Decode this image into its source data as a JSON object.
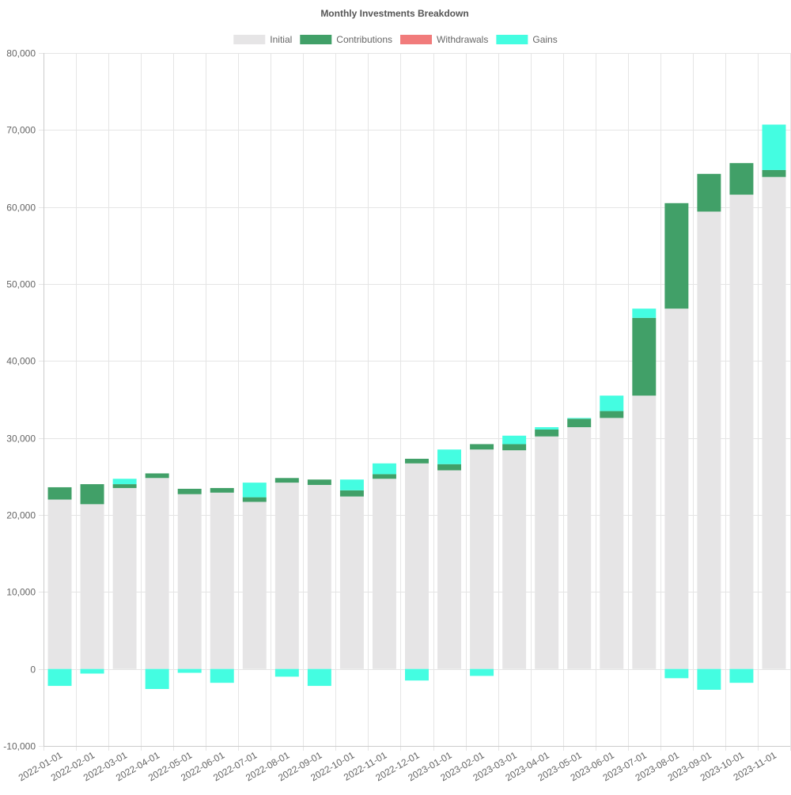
{
  "chart_data": {
    "type": "bar",
    "stacked": true,
    "title": "Monthly Investments Breakdown",
    "xlabel": "",
    "ylabel": "",
    "ylim": [
      -10000,
      80000
    ],
    "yticks": [
      -10000,
      0,
      10000,
      20000,
      30000,
      40000,
      50000,
      60000,
      70000,
      80000
    ],
    "ytick_labels": [
      "-10,000",
      "0",
      "10,000",
      "20,000",
      "30,000",
      "40,000",
      "50,000",
      "60,000",
      "70,000",
      "80,000"
    ],
    "grid": true,
    "legend_position": "top",
    "categories": [
      "2022-01-01",
      "2022-02-01",
      "2022-03-01",
      "2022-04-01",
      "2022-05-01",
      "2022-06-01",
      "2022-07-01",
      "2022-08-01",
      "2022-09-01",
      "2022-10-01",
      "2022-11-01",
      "2022-12-01",
      "2023-01-01",
      "2023-02-01",
      "2023-03-01",
      "2023-04-01",
      "2023-05-01",
      "2023-06-01",
      "2023-07-01",
      "2023-08-01",
      "2023-09-01",
      "2023-10-01",
      "2023-11-01"
    ],
    "series": [
      {
        "name": "Initial",
        "color": "#e6e5e6",
        "values": [
          22000,
          21400,
          23500,
          24800,
          22700,
          22900,
          21700,
          24200,
          23900,
          22400,
          24700,
          26700,
          25800,
          28500,
          28400,
          30200,
          31400,
          32600,
          35500,
          46800,
          59400,
          61600,
          63900
        ]
      },
      {
        "name": "Contributions",
        "color": "#41a068",
        "values": [
          1600,
          2600,
          500,
          600,
          700,
          600,
          600,
          600,
          700,
          800,
          600,
          600,
          800,
          700,
          800,
          900,
          1100,
          900,
          10100,
          13700,
          4900,
          4100,
          900
        ]
      },
      {
        "name": "Withdrawals",
        "color": "#f17b7b",
        "values": [
          0,
          0,
          0,
          0,
          0,
          0,
          0,
          0,
          0,
          0,
          0,
          0,
          0,
          0,
          0,
          0,
          0,
          0,
          0,
          0,
          0,
          0,
          0
        ]
      },
      {
        "name": "Gains",
        "color": "#44fde1",
        "values": [
          -2200,
          -600,
          700,
          -2600,
          -500,
          -1800,
          1900,
          -1000,
          -2200,
          1400,
          1400,
          -1500,
          1900,
          -900,
          1100,
          300,
          100,
          2000,
          1200,
          -1200,
          -2700,
          -1800,
          5900
        ]
      }
    ]
  }
}
